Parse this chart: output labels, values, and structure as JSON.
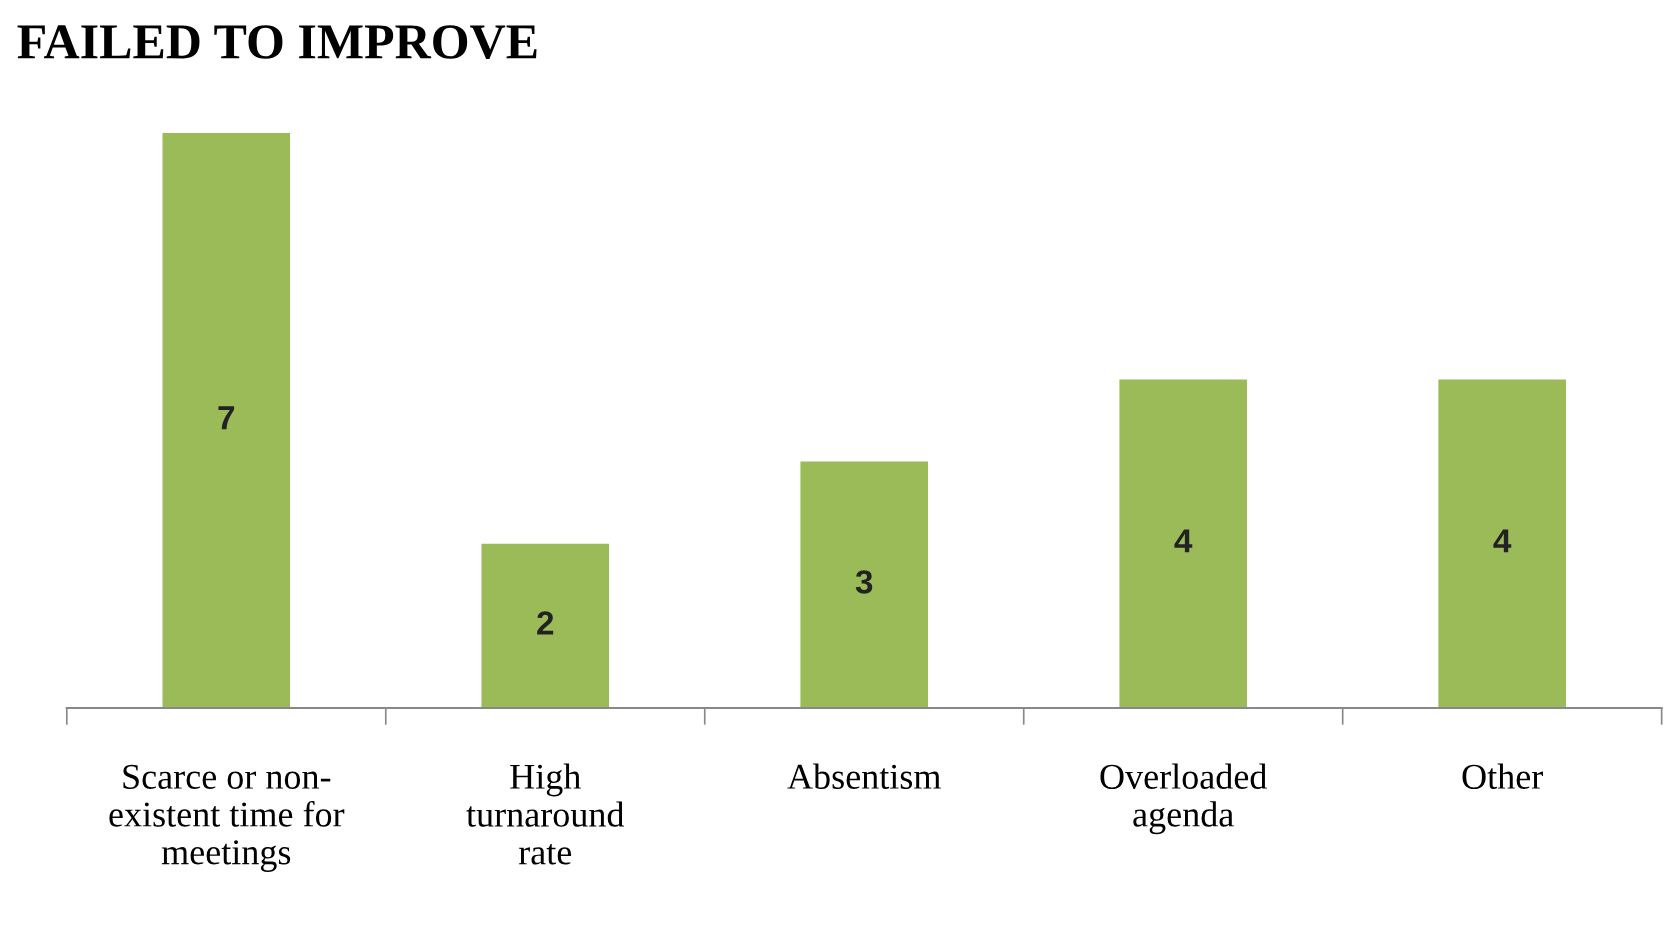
{
  "chart_data": {
    "type": "bar",
    "title": "FAILED TO IMPROVE",
    "categories": [
      "Scarce or non-\nexistent time for\nmeetings",
      "High\nturnaround\nrate",
      "Absentism",
      "Overloaded\nagenda",
      "Other"
    ],
    "values": [
      7,
      2,
      3,
      4,
      4
    ],
    "color": "#9bbb59",
    "data_labels": true,
    "grid": false,
    "legend": false
  }
}
